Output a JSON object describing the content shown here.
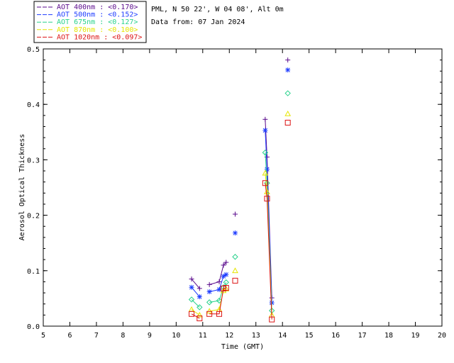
{
  "header": {
    "station": "PML, N 50 22', W 04 08', Alt 0m",
    "date": "Data from: 07 Jan 2024"
  },
  "legend": [
    {
      "label": "AOT  400nm : <0.170>",
      "color": "#5a0a8c"
    },
    {
      "label": "AOT  500nm : <0.152>",
      "color": "#1e3cff"
    },
    {
      "label": "AOT  675nm : <0.127>",
      "color": "#28d28c"
    },
    {
      "label": "AOT  870nm : <0.100>",
      "color": "#e6e600"
    },
    {
      "label": "AOT 1020nm : <0.097>",
      "color": "#dc1414"
    }
  ],
  "chart_data": {
    "type": "scatter",
    "title": "",
    "xlabel": "Time (GMT)",
    "ylabel": "Aerosol Optical Thickness",
    "xlim": [
      5,
      20
    ],
    "ylim": [
      0,
      0.5
    ],
    "xticks": [
      5,
      6,
      7,
      8,
      9,
      10,
      11,
      12,
      13,
      14,
      15,
      16,
      17,
      18,
      19,
      20
    ],
    "yticks": [
      0.0,
      0.1,
      0.2,
      0.3,
      0.4,
      0.5
    ],
    "ytick_labels": [
      "0.0",
      "0.1",
      "0.2",
      "0.3",
      "0.4",
      "0.5"
    ],
    "grid": false,
    "legend_position": "top-left, outside plot",
    "segments": [
      [
        0,
        1
      ],
      [
        2,
        3,
        4,
        5
      ],
      [
        6
      ],
      [
        7,
        8,
        9
      ],
      [
        10
      ]
    ],
    "x": [
      10.58,
      10.88,
      11.25,
      11.62,
      11.78,
      11.88,
      12.22,
      13.35,
      13.42,
      13.6,
      14.2
    ],
    "series": [
      {
        "name": "AOT  400nm",
        "marker": "plus",
        "color": "#5a0a8c",
        "values": [
          0.085,
          0.068,
          0.075,
          0.08,
          0.11,
          0.115,
          0.202,
          0.373,
          0.305,
          0.051,
          0.48
        ]
      },
      {
        "name": "AOT  500nm",
        "marker": "asterisk",
        "color": "#1e3cff",
        "values": [
          0.07,
          0.053,
          0.062,
          0.066,
          0.09,
          0.093,
          0.168,
          0.353,
          0.283,
          0.042,
          0.462
        ]
      },
      {
        "name": "AOT  675nm",
        "marker": "diamond",
        "color": "#28d28c",
        "values": [
          0.048,
          0.034,
          0.043,
          0.046,
          0.07,
          0.079,
          0.125,
          0.313,
          0.258,
          0.028,
          0.42
        ]
      },
      {
        "name": "AOT  870nm",
        "marker": "triangle",
        "color": "#e6e600",
        "values": [
          0.03,
          0.02,
          0.027,
          0.03,
          0.064,
          0.067,
          0.1,
          0.276,
          0.242,
          0.02,
          0.383
        ]
      },
      {
        "name": "AOT 1020nm",
        "marker": "square",
        "color": "#dc1414",
        "values": [
          0.022,
          0.014,
          0.022,
          0.022,
          0.068,
          0.069,
          0.082,
          0.258,
          0.23,
          0.012,
          0.367
        ]
      }
    ]
  }
}
